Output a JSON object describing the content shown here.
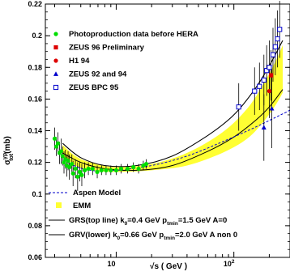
{
  "chart_data": {
    "type": "scatter",
    "xscale": "log",
    "xlim": [
      2.5,
      300
    ],
    "ylim": [
      0.06,
      0.22
    ],
    "xlabel": "√s ( GeV )",
    "ylabel": "σ_tot^γp (mb)",
    "ylabel_parts": {
      "main": "σ",
      "sup": "γp",
      "sub": "tot",
      "unit": "(mb)"
    },
    "x_ticks": [
      {
        "value": 10,
        "label": "10"
      },
      {
        "value": 100,
        "label": "10",
        "sup": "2"
      }
    ],
    "y_ticks": [
      {
        "value": 0.06,
        "label": "0.06"
      },
      {
        "value": 0.08,
        "label": "0.08"
      },
      {
        "value": 0.1,
        "label": "0.1"
      },
      {
        "value": 0.12,
        "label": "0.12"
      },
      {
        "value": 0.14,
        "label": "0.14"
      },
      {
        "value": 0.16,
        "label": "0.16"
      },
      {
        "value": 0.18,
        "label": "0.18"
      },
      {
        "value": 0.2,
        "label": "0.2"
      },
      {
        "value": 0.22,
        "label": "0.22"
      }
    ],
    "legend": {
      "placement": "inside-top-left",
      "items": [
        {
          "marker": "green-circle",
          "label": "Photoproduction data before HERA"
        },
        {
          "marker": "red-square",
          "label": "ZEUS 96 Preliminary"
        },
        {
          "marker": "red-circle",
          "label": "H1 94"
        },
        {
          "marker": "blue-triangle",
          "label": "ZEUS 92 and 94"
        },
        {
          "marker": "blue-open-square",
          "label": "ZEUS BPC 95"
        }
      ]
    },
    "legend_bottom": {
      "placement": "inside-bottom-left",
      "items": [
        {
          "marker": "blue-dashed",
          "label": "Aspen Model"
        },
        {
          "marker": "yellow-box",
          "label": "EMM"
        },
        {
          "marker": "black-line",
          "label": "GRS(top line) k",
          "sub": "0",
          "rest": "=0.4 GeV  p",
          "sub2": "tmin",
          "rest2": "=1.5 GeV A=0"
        },
        {
          "marker": "black-line",
          "label": "GRV(lower) k",
          "sub": "0",
          "rest": "=0.66 GeV p",
          "sub2": "tmin",
          "rest2": "=2.0 GeV A non 0"
        }
      ]
    },
    "colors": {
      "photoproduction": "#00dd00",
      "zeus96": "#dd0000",
      "h1": "#dd0000",
      "zeus92": "#0000cc",
      "zeusbpc": "#0000cc",
      "aspen": "#0000cc",
      "emm_band": "#ffff33"
    },
    "series": [
      {
        "name": "Photoproduction data before HERA",
        "marker": "green-circle",
        "points": [
          [
            3.0,
            0.135,
            0.007
          ],
          [
            3.1,
            0.13,
            0.006
          ],
          [
            3.2,
            0.132,
            0.007
          ],
          [
            3.3,
            0.126,
            0.007
          ],
          [
            3.4,
            0.127,
            0.008
          ],
          [
            3.5,
            0.124,
            0.006
          ],
          [
            3.6,
            0.12,
            0.007
          ],
          [
            3.7,
            0.122,
            0.006
          ],
          [
            3.8,
            0.118,
            0.007
          ],
          [
            3.9,
            0.121,
            0.006
          ],
          [
            4.0,
            0.117,
            0.008
          ],
          [
            4.2,
            0.119,
            0.006
          ],
          [
            4.3,
            0.113,
            0.008
          ],
          [
            4.5,
            0.116,
            0.006
          ],
          [
            4.7,
            0.111,
            0.009
          ],
          [
            4.9,
            0.114,
            0.006
          ],
          [
            5.1,
            0.112,
            0.007
          ],
          [
            5.4,
            0.115,
            0.005
          ],
          [
            5.8,
            0.116,
            0.004
          ],
          [
            6.3,
            0.116,
            0.004
          ],
          [
            6.9,
            0.114,
            0.004
          ],
          [
            7.5,
            0.115,
            0.003
          ],
          [
            8.2,
            0.115,
            0.003
          ],
          [
            9.0,
            0.115,
            0.003
          ],
          [
            10.0,
            0.115,
            0.003
          ],
          [
            11.0,
            0.116,
            0.003
          ],
          [
            12.5,
            0.116,
            0.003
          ],
          [
            14.0,
            0.117,
            0.003
          ],
          [
            15.5,
            0.116,
            0.003
          ],
          [
            17.0,
            0.118,
            0.003
          ],
          [
            18.0,
            0.119,
            0.003
          ]
        ]
      },
      {
        "name": "ZEUS 96 Preliminary",
        "marker": "red-square",
        "points": [
          [
            207,
            0.175,
            0.016
          ]
        ]
      },
      {
        "name": "H1 94",
        "marker": "red-circle",
        "points": [
          [
            200,
            0.165,
            0.017
          ]
        ]
      },
      {
        "name": "ZEUS 92 and 94",
        "marker": "blue-triangle",
        "points": [
          [
            180,
            0.142,
            0.021
          ],
          [
            210,
            0.154,
            0.025
          ]
        ]
      },
      {
        "name": "ZEUS BPC 95",
        "marker": "blue-open-square",
        "points": [
          [
            110,
            0.155,
            0.015
          ],
          [
            150,
            0.165,
            0.015
          ],
          [
            165,
            0.168,
            0.015
          ],
          [
            180,
            0.172,
            0.016
          ],
          [
            190,
            0.178,
            0.016
          ],
          [
            200,
            0.18,
            0.017
          ],
          [
            215,
            0.188,
            0.017
          ],
          [
            225,
            0.193,
            0.018
          ],
          [
            235,
            0.198,
            0.018
          ],
          [
            245,
            0.204,
            0.018
          ]
        ]
      }
    ],
    "curves": {
      "aspen": [
        [
          4,
          0.119
        ],
        [
          6,
          0.115
        ],
        [
          10,
          0.115
        ],
        [
          20,
          0.118
        ],
        [
          40,
          0.124
        ],
        [
          80,
          0.133
        ],
        [
          150,
          0.142
        ],
        [
          250,
          0.15
        ],
        [
          300,
          0.153
        ]
      ],
      "emm_upper": [
        [
          3.5,
          0.131
        ],
        [
          4.5,
          0.124
        ],
        [
          6,
          0.12
        ],
        [
          10,
          0.117
        ],
        [
          20,
          0.119
        ],
        [
          40,
          0.126
        ],
        [
          80,
          0.139
        ],
        [
          130,
          0.154
        ],
        [
          180,
          0.17
        ],
        [
          230,
          0.185
        ],
        [
          260,
          0.194
        ]
      ],
      "emm_lower": [
        [
          3.5,
          0.124
        ],
        [
          4.5,
          0.118
        ],
        [
          6,
          0.115
        ],
        [
          10,
          0.114
        ],
        [
          20,
          0.115
        ],
        [
          40,
          0.118
        ],
        [
          80,
          0.126
        ],
        [
          130,
          0.135
        ],
        [
          180,
          0.146
        ],
        [
          230,
          0.157
        ],
        [
          260,
          0.164
        ]
      ],
      "grs": [
        [
          3.5,
          0.132
        ],
        [
          5,
          0.123
        ],
        [
          8,
          0.118
        ],
        [
          15,
          0.118
        ],
        [
          30,
          0.124
        ],
        [
          60,
          0.137
        ],
        [
          100,
          0.15
        ],
        [
          150,
          0.166
        ],
        [
          200,
          0.181
        ],
        [
          260,
          0.197
        ]
      ],
      "grv": [
        [
          3.5,
          0.126
        ],
        [
          5,
          0.12
        ],
        [
          8,
          0.116
        ],
        [
          15,
          0.115
        ],
        [
          30,
          0.118
        ],
        [
          60,
          0.127
        ],
        [
          100,
          0.136
        ],
        [
          150,
          0.146
        ],
        [
          200,
          0.155
        ],
        [
          260,
          0.166
        ]
      ]
    }
  }
}
